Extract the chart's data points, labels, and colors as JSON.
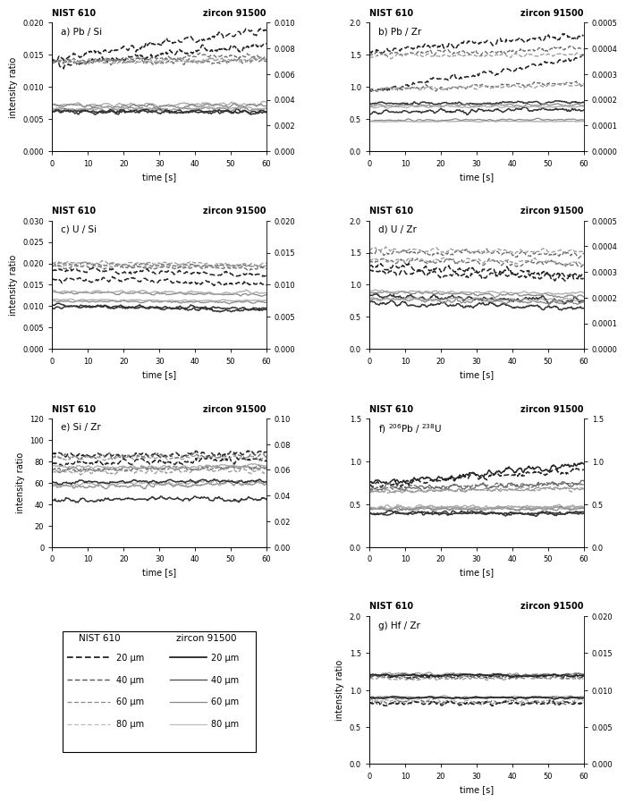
{
  "panels": [
    {
      "label": "a) Pb / Si",
      "ylim_left": [
        0.0,
        0.02
      ],
      "ylim_right": [
        0.0,
        0.01
      ],
      "yticks_left": [
        0.0,
        0.005,
        0.01,
        0.015,
        0.02
      ],
      "yticks_right": [
        0.0,
        0.002,
        0.004,
        0.006,
        0.008,
        0.01
      ],
      "yticklabels_left": [
        "0.000",
        "0.005",
        "0.010",
        "0.015",
        "0.020"
      ],
      "yticklabels_right": [
        "0.000",
        "0.002",
        "0.004",
        "0.006",
        "0.008",
        "0.010"
      ],
      "nist_lines": [
        {
          "level": 0.0135,
          "slope": 5e-05,
          "noise": 0.0008,
          "style": "dashed",
          "color": "#222222",
          "lw": 1.1
        },
        {
          "level": 0.0138,
          "slope": 5e-06,
          "noise": 0.0006,
          "style": "dashed",
          "color": "#666666",
          "lw": 0.9
        },
        {
          "level": 0.014,
          "slope": 2e-06,
          "noise": 0.0005,
          "style": "dashed",
          "color": "#999999",
          "lw": 0.9
        },
        {
          "level": 0.0065,
          "slope": 1e-06,
          "noise": 0.0004,
          "style": "solid",
          "color": "#888888",
          "lw": 0.9
        },
        {
          "level": 0.0072,
          "slope": 1e-06,
          "noise": 0.0004,
          "style": "solid",
          "color": "#aaaaaa",
          "lw": 0.9
        },
        {
          "level": 0.0062,
          "slope": -2e-06,
          "noise": 0.0005,
          "style": "solid",
          "color": "#333333",
          "lw": 1.1
        }
      ],
      "zircon_lines": [
        {
          "level": 0.0072,
          "slope": 3.8e-05,
          "noise": 0.0004,
          "style": "dashed",
          "color": "#222222",
          "lw": 1.1
        },
        {
          "level": 0.007,
          "slope": 8e-06,
          "noise": 0.0003,
          "style": "dashed",
          "color": "#666666",
          "lw": 0.9
        },
        {
          "level": 0.0069,
          "slope": 3e-06,
          "noise": 0.0003,
          "style": "dashed",
          "color": "#999999",
          "lw": 0.9
        },
        {
          "level": 0.0035,
          "slope": 1e-06,
          "noise": 0.0002,
          "style": "solid",
          "color": "#888888",
          "lw": 0.9
        },
        {
          "level": 0.0033,
          "slope": 5e-07,
          "noise": 0.0002,
          "style": "solid",
          "color": "#aaaaaa",
          "lw": 0.9
        },
        {
          "level": 0.0031,
          "slope": -1e-06,
          "noise": 0.0002,
          "style": "solid",
          "color": "#333333",
          "lw": 1.1
        }
      ]
    },
    {
      "label": "b) Pb / Zr",
      "ylim_left": [
        0.0,
        2.0
      ],
      "ylim_right": [
        0.0,
        0.0005
      ],
      "yticks_left": [
        0.0,
        0.5,
        1.0,
        1.5,
        2.0
      ],
      "yticks_right": [
        0.0,
        0.0001,
        0.0002,
        0.0003,
        0.0004,
        0.0005
      ],
      "yticklabels_left": [
        "0.0",
        "0.5",
        "1.0",
        "1.5",
        "2.0"
      ],
      "yticklabels_right": [
        "0.0000",
        "0.0001",
        "0.0002",
        "0.0003",
        "0.0004",
        "0.0005"
      ],
      "nist_lines": [
        {
          "level": 0.93,
          "slope": 0.009,
          "noise": 0.06,
          "style": "dashed",
          "color": "#222222",
          "lw": 1.1
        },
        {
          "level": 0.95,
          "slope": 0.002,
          "noise": 0.05,
          "style": "dashed",
          "color": "#666666",
          "lw": 0.9
        },
        {
          "level": 0.97,
          "slope": 0.001,
          "noise": 0.04,
          "style": "dashed",
          "color": "#999999",
          "lw": 0.9
        },
        {
          "level": 0.6,
          "slope": 0.001,
          "noise": 0.05,
          "style": "solid",
          "color": "#333333",
          "lw": 1.1
        },
        {
          "level": 0.48,
          "slope": 0.0002,
          "noise": 0.02,
          "style": "solid",
          "color": "#888888",
          "lw": 0.9
        },
        {
          "level": 0.46,
          "slope": 0.0001,
          "noise": 0.01,
          "style": "solid",
          "color": "#aaaaaa",
          "lw": 0.9
        }
      ],
      "zircon_lines": [
        {
          "level": 0.00039,
          "slope": 1e-06,
          "noise": 1.8e-05,
          "style": "dashed",
          "color": "#222222",
          "lw": 1.1
        },
        {
          "level": 0.00038,
          "slope": 3e-07,
          "noise": 1.5e-05,
          "style": "dashed",
          "color": "#666666",
          "lw": 0.9
        },
        {
          "level": 0.00037,
          "slope": 1e-07,
          "noise": 1.2e-05,
          "style": "dashed",
          "color": "#999999",
          "lw": 0.9
        },
        {
          "level": 0.000185,
          "slope": 1e-07,
          "noise": 8e-06,
          "style": "solid",
          "color": "#333333",
          "lw": 1.1
        },
        {
          "level": 0.000178,
          "slope": 5e-08,
          "noise": 6e-06,
          "style": "solid",
          "color": "#888888",
          "lw": 0.9
        },
        {
          "level": 0.000172,
          "slope": 2e-08,
          "noise": 5e-06,
          "style": "solid",
          "color": "#aaaaaa",
          "lw": 0.9
        }
      ]
    },
    {
      "label": "c) U / Si",
      "ylim_left": [
        0.0,
        0.03
      ],
      "ylim_right": [
        0.0,
        0.02
      ],
      "yticks_left": [
        0.0,
        0.005,
        0.01,
        0.015,
        0.02,
        0.025,
        0.03
      ],
      "yticks_right": [
        0.0,
        0.005,
        0.01,
        0.015,
        0.02
      ],
      "yticklabels_left": [
        "0.000",
        "0.005",
        "0.010",
        "0.015",
        "0.020",
        "0.025",
        "0.030"
      ],
      "yticklabels_right": [
        "0.000",
        "0.005",
        "0.010",
        "0.015",
        "0.020"
      ],
      "nist_lines": [
        {
          "level": 0.0185,
          "slope": -2e-05,
          "noise": 0.0007,
          "style": "dashed",
          "color": "#222222",
          "lw": 1.1
        },
        {
          "level": 0.02,
          "slope": -1.2e-05,
          "noise": 0.0005,
          "style": "dashed",
          "color": "#666666",
          "lw": 0.9
        },
        {
          "level": 0.0202,
          "slope": -8e-06,
          "noise": 0.0005,
          "style": "dashed",
          "color": "#999999",
          "lw": 0.9
        },
        {
          "level": 0.01,
          "slope": -1e-05,
          "noise": 0.0005,
          "style": "solid",
          "color": "#333333",
          "lw": 1.1
        },
        {
          "level": 0.0112,
          "slope": -6e-06,
          "noise": 0.0004,
          "style": "solid",
          "color": "#888888",
          "lw": 0.9
        },
        {
          "level": 0.0115,
          "slope": -4e-06,
          "noise": 0.0003,
          "style": "solid",
          "color": "#aaaaaa",
          "lw": 0.9
        }
      ],
      "zircon_lines": [
        {
          "level": 0.0109,
          "slope": -1.2e-05,
          "noise": 0.0006,
          "style": "dashed",
          "color": "#222222",
          "lw": 1.1
        },
        {
          "level": 0.0128,
          "slope": -4e-06,
          "noise": 0.0004,
          "style": "dashed",
          "color": "#666666",
          "lw": 0.9
        },
        {
          "level": 0.013,
          "slope": -2e-06,
          "noise": 0.0004,
          "style": "dashed",
          "color": "#999999",
          "lw": 0.9
        },
        {
          "level": 0.0068,
          "slope": -1.4e-05,
          "noise": 0.0004,
          "style": "solid",
          "color": "#333333",
          "lw": 1.1
        },
        {
          "level": 0.0088,
          "slope": -6e-06,
          "noise": 0.0003,
          "style": "solid",
          "color": "#888888",
          "lw": 0.9
        },
        {
          "level": 0.009,
          "slope": -4e-06,
          "noise": 0.0003,
          "style": "solid",
          "color": "#aaaaaa",
          "lw": 0.9
        }
      ]
    },
    {
      "label": "d) U / Zr",
      "ylim_left": [
        0.0,
        2.0
      ],
      "ylim_right": [
        0.0,
        0.0005
      ],
      "yticks_left": [
        0.0,
        0.5,
        1.0,
        1.5,
        2.0
      ],
      "yticks_right": [
        0.0,
        0.0001,
        0.0002,
        0.0003,
        0.0004,
        0.0005
      ],
      "yticklabels_left": [
        "0.0",
        "0.5",
        "1.0",
        "1.5",
        "2.0"
      ],
      "yticklabels_right": [
        "0.0000",
        "0.0001",
        "0.0002",
        "0.0003",
        "0.0004",
        "0.0005"
      ],
      "nist_lines": [
        {
          "level": 1.22,
          "slope": -0.002,
          "noise": 0.08,
          "style": "dashed",
          "color": "#222222",
          "lw": 1.1
        },
        {
          "level": 1.38,
          "slope": -0.001,
          "noise": 0.06,
          "style": "dashed",
          "color": "#666666",
          "lw": 0.9
        },
        {
          "level": 1.4,
          "slope": -0.001,
          "noise": 0.05,
          "style": "dashed",
          "color": "#999999",
          "lw": 0.9
        },
        {
          "level": 0.82,
          "slope": -0.001,
          "noise": 0.06,
          "style": "solid",
          "color": "#333333",
          "lw": 1.1
        },
        {
          "level": 0.88,
          "slope": -0.001,
          "noise": 0.04,
          "style": "solid",
          "color": "#888888",
          "lw": 0.9
        },
        {
          "level": 0.9,
          "slope": -0.0005,
          "noise": 0.03,
          "style": "solid",
          "color": "#aaaaaa",
          "lw": 0.9
        }
      ],
      "zircon_lines": [
        {
          "level": 0.00032,
          "slope": -5e-07,
          "noise": 2e-05,
          "style": "dashed",
          "color": "#222222",
          "lw": 1.1
        },
        {
          "level": 0.000378,
          "slope": -2e-07,
          "noise": 1.5e-05,
          "style": "dashed",
          "color": "#666666",
          "lw": 0.9
        },
        {
          "level": 0.000385,
          "slope": -1e-07,
          "noise": 1.2e-05,
          "style": "dashed",
          "color": "#999999",
          "lw": 0.9
        },
        {
          "level": 0.000178,
          "slope": -3e-07,
          "noise": 1.2e-05,
          "style": "solid",
          "color": "#333333",
          "lw": 1.1
        },
        {
          "level": 0.000192,
          "slope": -2e-07,
          "noise": 1e-05,
          "style": "solid",
          "color": "#888888",
          "lw": 0.9
        },
        {
          "level": 0.000196,
          "slope": -1e-07,
          "noise": 8e-06,
          "style": "solid",
          "color": "#aaaaaa",
          "lw": 0.9
        }
      ]
    },
    {
      "label": "e) Si / Zr",
      "ylim_left": [
        0,
        120
      ],
      "ylim_right": [
        0.0,
        0.1
      ],
      "yticks_left": [
        0,
        20,
        40,
        60,
        80,
        100,
        120
      ],
      "yticks_right": [
        0.0,
        0.02,
        0.04,
        0.06,
        0.08,
        0.1
      ],
      "yticklabels_left": [
        "0",
        "20",
        "40",
        "60",
        "80",
        "100",
        "120"
      ],
      "yticklabels_right": [
        "0.00",
        "0.02",
        "0.04",
        "0.06",
        "0.08",
        "0.10"
      ],
      "nist_lines": [
        {
          "level": 78,
          "slope": 0.06,
          "noise": 4,
          "style": "dashed",
          "color": "#222222",
          "lw": 1.1
        },
        {
          "level": 72,
          "slope": 0.03,
          "noise": 3,
          "style": "dashed",
          "color": "#666666",
          "lw": 0.9
        },
        {
          "level": 70,
          "slope": 0.02,
          "noise": 3,
          "style": "dashed",
          "color": "#999999",
          "lw": 0.9
        },
        {
          "level": 44,
          "slope": 0.02,
          "noise": 3,
          "style": "solid",
          "color": "#333333",
          "lw": 1.1
        },
        {
          "level": 56,
          "slope": 0.05,
          "noise": 3,
          "style": "solid",
          "color": "#888888",
          "lw": 0.9
        },
        {
          "level": 58,
          "slope": 0.04,
          "noise": 3,
          "style": "solid",
          "color": "#aaaaaa",
          "lw": 0.9
        }
      ],
      "zircon_lines": [
        {
          "level": 0.071,
          "slope": 3e-05,
          "noise": 0.003,
          "style": "dashed",
          "color": "#222222",
          "lw": 1.1
        },
        {
          "level": 0.07,
          "slope": 2e-05,
          "noise": 0.003,
          "style": "dashed",
          "color": "#666666",
          "lw": 0.9
        },
        {
          "level": 0.069,
          "slope": 1e-05,
          "noise": 0.002,
          "style": "dashed",
          "color": "#999999",
          "lw": 0.9
        },
        {
          "level": 0.05,
          "slope": 2e-05,
          "noise": 0.002,
          "style": "solid",
          "color": "#333333",
          "lw": 1.1
        },
        {
          "level": 0.06,
          "slope": 3e-05,
          "noise": 0.002,
          "style": "solid",
          "color": "#888888",
          "lw": 0.9
        },
        {
          "level": 0.062,
          "slope": 2e-05,
          "noise": 0.002,
          "style": "solid",
          "color": "#aaaaaa",
          "lw": 0.9
        }
      ]
    },
    {
      "label": "f) $^{206}$Pb / $^{238}$U",
      "ylim_left": [
        0.0,
        1.5
      ],
      "ylim_right": [
        0.0,
        1.5
      ],
      "yticks_left": [
        0.0,
        0.5,
        1.0,
        1.5
      ],
      "yticks_right": [
        0.0,
        0.5,
        1.0,
        1.5
      ],
      "yticklabels_left": [
        "0.0",
        "0.5",
        "1.0",
        "1.5"
      ],
      "yticklabels_right": [
        "0.0",
        "0.5",
        "1.0",
        "1.5"
      ],
      "nist_lines": [
        {
          "level": 0.72,
          "slope": 0.003,
          "noise": 0.05,
          "style": "dashed",
          "color": "#222222",
          "lw": 1.1
        },
        {
          "level": 0.68,
          "slope": 0.001,
          "noise": 0.04,
          "style": "dashed",
          "color": "#666666",
          "lw": 0.9
        },
        {
          "level": 0.65,
          "slope": 0.0005,
          "noise": 0.03,
          "style": "dashed",
          "color": "#999999",
          "lw": 0.9
        },
        {
          "level": 0.4,
          "slope": -0.0002,
          "noise": 0.03,
          "style": "solid",
          "color": "#333333",
          "lw": 1.1
        },
        {
          "level": 0.44,
          "slope": 0.0002,
          "noise": 0.03,
          "style": "solid",
          "color": "#888888",
          "lw": 0.9
        },
        {
          "level": 0.46,
          "slope": 0.0001,
          "noise": 0.03,
          "style": "solid",
          "color": "#aaaaaa",
          "lw": 0.9
        }
      ],
      "zircon_lines": [
        {
          "level": 0.73,
          "slope": 0.004,
          "noise": 0.05,
          "style": "solid",
          "color": "#222222",
          "lw": 1.1
        },
        {
          "level": 0.68,
          "slope": 0.001,
          "noise": 0.04,
          "style": "solid",
          "color": "#666666",
          "lw": 0.9
        },
        {
          "level": 0.65,
          "slope": 0.0005,
          "noise": 0.03,
          "style": "solid",
          "color": "#999999",
          "lw": 0.9
        },
        {
          "level": 0.4,
          "slope": -0.0002,
          "noise": 0.03,
          "style": "solid",
          "color": "#333333",
          "lw": 1.1
        },
        {
          "level": 0.44,
          "slope": 0.0001,
          "noise": 0.03,
          "style": "solid",
          "color": "#888888",
          "lw": 0.9
        },
        {
          "level": 0.46,
          "slope": 0.0001,
          "noise": 0.03,
          "style": "solid",
          "color": "#aaaaaa",
          "lw": 0.9
        }
      ]
    },
    {
      "label": "g) Hf / Zr",
      "ylim_left": [
        0.0,
        2.0
      ],
      "ylim_right": [
        0.0,
        0.02
      ],
      "yticks_left": [
        0.0,
        0.5,
        1.0,
        1.5,
        2.0
      ],
      "yticks_right": [
        0.0,
        0.005,
        0.01,
        0.015,
        0.02
      ],
      "yticklabels_left": [
        "0.0",
        "0.5",
        "1.0",
        "1.5",
        "2.0"
      ],
      "yticklabels_right": [
        "0.000",
        "0.005",
        "0.010",
        "0.015",
        "0.020"
      ],
      "nist_lines": [
        {
          "level": 1.18,
          "slope": 0.0002,
          "noise": 0.04,
          "style": "dashed",
          "color": "#222222",
          "lw": 1.1
        },
        {
          "level": 1.17,
          "slope": 0.0001,
          "noise": 0.035,
          "style": "dashed",
          "color": "#666666",
          "lw": 0.9
        },
        {
          "level": 1.16,
          "slope": 0.0001,
          "noise": 0.03,
          "style": "dashed",
          "color": "#999999",
          "lw": 0.9
        },
        {
          "level": 0.85,
          "slope": 0.0001,
          "noise": 0.04,
          "style": "dashed",
          "color": "#aaaaaa",
          "lw": 0.9
        },
        {
          "level": 0.83,
          "slope": 5e-05,
          "noise": 0.04,
          "style": "dashed",
          "color": "#666666",
          "lw": 0.9
        },
        {
          "level": 0.82,
          "slope": 3e-05,
          "noise": 0.04,
          "style": "dashed",
          "color": "#222222",
          "lw": 1.1
        }
      ],
      "zircon_lines": [
        {
          "level": 0.0121,
          "slope": 0.0,
          "noise": 0.00035,
          "style": "solid",
          "color": "#999999",
          "lw": 0.9
        },
        {
          "level": 0.01205,
          "slope": 0.0,
          "noise": 0.00028,
          "style": "solid",
          "color": "#666666",
          "lw": 0.9
        },
        {
          "level": 0.012,
          "slope": 0.0,
          "noise": 0.00025,
          "style": "solid",
          "color": "#222222",
          "lw": 1.1
        },
        {
          "level": 0.00905,
          "slope": 0.0,
          "noise": 0.00025,
          "style": "solid",
          "color": "#aaaaaa",
          "lw": 0.9
        },
        {
          "level": 0.009,
          "slope": 0.0,
          "noise": 0.0002,
          "style": "solid",
          "color": "#666666",
          "lw": 0.9
        },
        {
          "level": 0.00898,
          "slope": 0.0,
          "noise": 0.00018,
          "style": "solid",
          "color": "#222222",
          "lw": 1.1
        }
      ]
    }
  ],
  "legend_colors": [
    "#111111",
    "#555555",
    "#888888",
    "#bbbbbb"
  ],
  "legend_lws": [
    1.2,
    1.0,
    0.9,
    0.9
  ],
  "legend_labels": [
    "20 μm",
    "40 μm",
    "60 μm",
    "80 μm"
  ]
}
